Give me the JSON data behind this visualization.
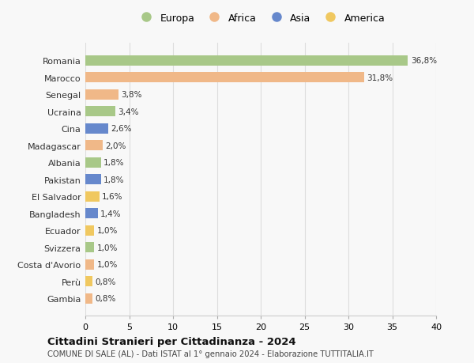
{
  "countries": [
    "Romania",
    "Marocco",
    "Senegal",
    "Ucraina",
    "Cina",
    "Madagascar",
    "Albania",
    "Pakistan",
    "El Salvador",
    "Bangladesh",
    "Ecuador",
    "Svizzera",
    "Costa d'Avorio",
    "Perù",
    "Gambia"
  ],
  "values": [
    36.8,
    31.8,
    3.8,
    3.4,
    2.6,
    2.0,
    1.8,
    1.8,
    1.6,
    1.4,
    1.0,
    1.0,
    1.0,
    0.8,
    0.8
  ],
  "labels": [
    "36,8%",
    "31,8%",
    "3,8%",
    "3,4%",
    "2,6%",
    "2,0%",
    "1,8%",
    "1,8%",
    "1,6%",
    "1,4%",
    "1,0%",
    "1,0%",
    "1,0%",
    "0,8%",
    "0,8%"
  ],
  "colors": [
    "#a8c888",
    "#f0b888",
    "#f0b888",
    "#a8c888",
    "#6688cc",
    "#f0b888",
    "#a8c888",
    "#6688cc",
    "#f0c860",
    "#6688cc",
    "#f0c860",
    "#a8c888",
    "#f0b888",
    "#f0c860",
    "#f0b888"
  ],
  "continent_colors": {
    "Europa": "#a8c888",
    "Africa": "#f0b888",
    "Asia": "#6688cc",
    "America": "#f0c860"
  },
  "legend_order": [
    "Europa",
    "Africa",
    "Asia",
    "America"
  ],
  "title": "Cittadini Stranieri per Cittadinanza - 2024",
  "subtitle": "COMUNE DI SALE (AL) - Dati ISTAT al 1° gennaio 2024 - Elaborazione TUTTITALIA.IT",
  "xlim": [
    0,
    40
  ],
  "xticks": [
    0,
    5,
    10,
    15,
    20,
    25,
    30,
    35,
    40
  ],
  "bg_color": "#f8f8f8",
  "grid_color": "#dddddd"
}
